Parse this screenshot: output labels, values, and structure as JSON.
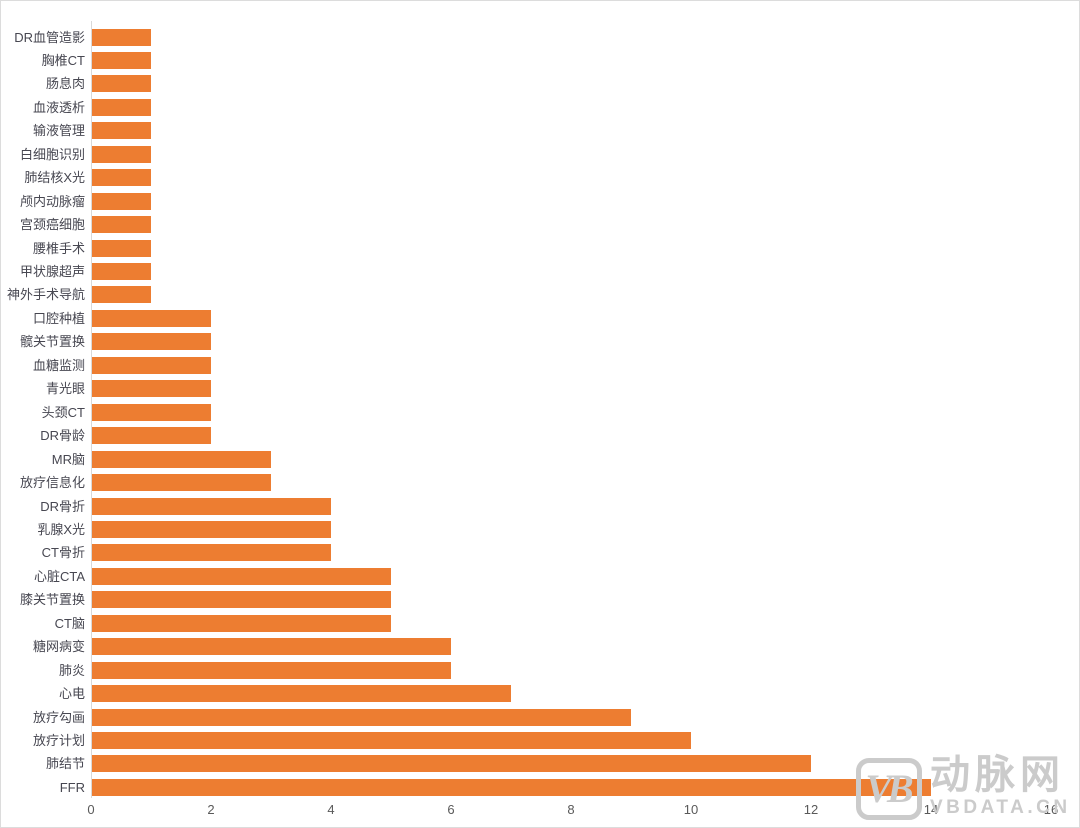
{
  "chart_data": {
    "type": "bar",
    "orientation": "horizontal",
    "title": "",
    "xlabel": "",
    "ylabel": "",
    "legend": "none",
    "grid": false,
    "xlim": [
      0,
      16
    ],
    "x_ticks": [
      "0",
      "2",
      "4",
      "6",
      "8",
      "10",
      "12",
      "14",
      "16"
    ],
    "x_tick_values": [
      0,
      2,
      4,
      6,
      8,
      10,
      12,
      14,
      16
    ],
    "bar_color": "#ED7D31",
    "categories_top_to_bottom": [
      "DR血管造影",
      "胸椎CT",
      "肠息肉",
      "血液透析",
      "输液管理",
      "白细胞识别",
      "肺结核X光",
      "颅内动脉瘤",
      "宫颈癌细胞",
      "腰椎手术",
      "甲状腺超声",
      "神外手术导航",
      "口腔种植",
      "髋关节置换",
      "血糖监测",
      "青光眼",
      "头颈CT",
      "DR骨龄",
      "MR脑",
      "放疗信息化",
      "DR骨折",
      "乳腺X光",
      "CT骨折",
      "心脏CTA",
      "膝关节置换",
      "CT脑",
      "糖网病变",
      "肺炎",
      "心电",
      "放疗勾画",
      "放疗计划",
      "肺结节",
      "FFR"
    ],
    "values": [
      1,
      1,
      1,
      1,
      1,
      1,
      1,
      1,
      1,
      1,
      1,
      1,
      2,
      2,
      2,
      2,
      2,
      2,
      3,
      3,
      4,
      4,
      4,
      5,
      5,
      5,
      6,
      6,
      7,
      9,
      10,
      12,
      14
    ]
  },
  "watermark": {
    "logo_text": "VB",
    "brand": "动脉网",
    "url": "VBDATA.CN"
  },
  "colors": {
    "bar": "#ED7D31",
    "category_label": "#474751",
    "tick_label": "#595959",
    "axis_line": "#d9d9d9",
    "watermark": "#cbcbcb"
  }
}
